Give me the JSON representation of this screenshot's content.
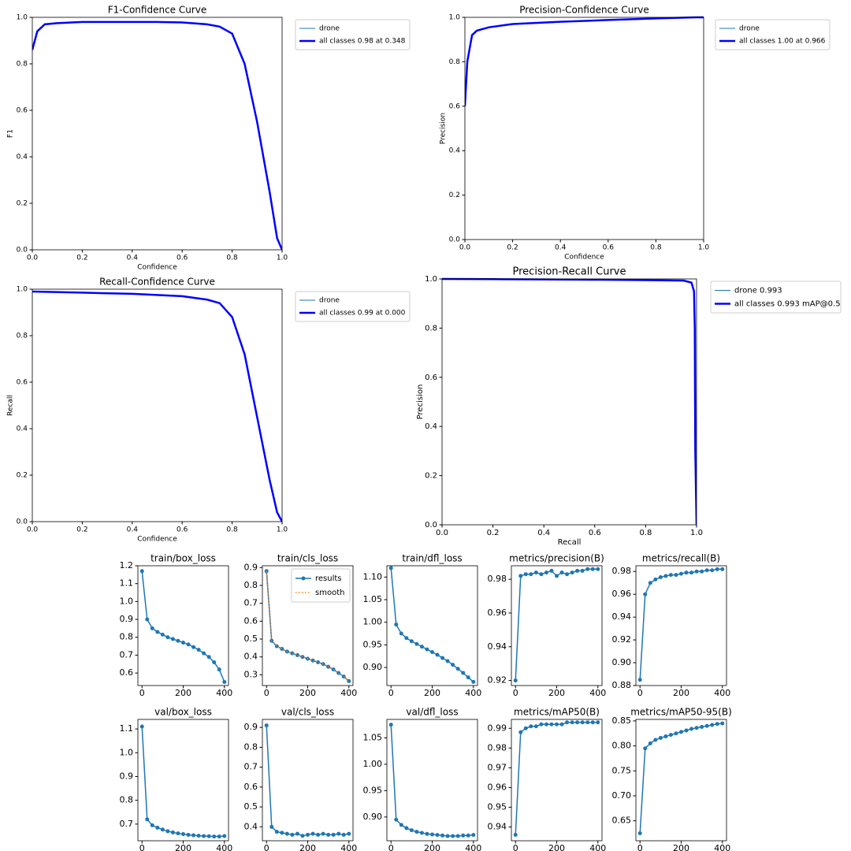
{
  "chart_data": [
    {
      "type": "line",
      "title": "F1-Confidence Curve",
      "xlabel": "Confidence",
      "ylabel": "F1",
      "legend": "outside right",
      "x": [
        0,
        0.02,
        0.05,
        0.1,
        0.2,
        0.348,
        0.5,
        0.6,
        0.7,
        0.75,
        0.8,
        0.85,
        0.9,
        0.95,
        0.98,
        1.0
      ],
      "series": [
        {
          "name": "drone",
          "color": "#1f77b4",
          "values": [
            0.86,
            0.94,
            0.97,
            0.975,
            0.98,
            0.98,
            0.98,
            0.978,
            0.97,
            0.96,
            0.93,
            0.8,
            0.55,
            0.25,
            0.05,
            0.0
          ]
        },
        {
          "name": "all classes 0.98 at 0.348",
          "color": "#0000ff",
          "values": [
            0.86,
            0.94,
            0.97,
            0.975,
            0.98,
            0.98,
            0.98,
            0.978,
            0.97,
            0.96,
            0.93,
            0.8,
            0.55,
            0.25,
            0.05,
            0.0
          ]
        }
      ],
      "xlim": [
        0,
        1
      ],
      "ylim": [
        0,
        1
      ],
      "xticks": [
        {
          "value": 0,
          "label": "0.0"
        },
        0.2,
        0.4,
        0.6,
        0.8,
        {
          "value": 1,
          "label": "1.0"
        }
      ],
      "yticks": [
        {
          "value": 0,
          "label": "0.0"
        },
        0.2,
        0.4,
        0.6,
        0.8,
        {
          "value": 1,
          "label": "1.0"
        }
      ]
    },
    {
      "type": "line",
      "title": "Precision-Confidence Curve",
      "xlabel": "Confidence",
      "ylabel": "Precision",
      "legend": "outside right",
      "x": [
        0,
        0.01,
        0.03,
        0.05,
        0.1,
        0.2,
        0.4,
        0.6,
        0.8,
        0.966,
        1.0
      ],
      "series": [
        {
          "name": "drone",
          "color": "#1f77b4",
          "values": [
            0.6,
            0.8,
            0.92,
            0.94,
            0.955,
            0.97,
            0.98,
            0.988,
            0.995,
            1.0,
            1.0
          ]
        },
        {
          "name": "all classes 1.00 at 0.966",
          "color": "#0000ff",
          "values": [
            0.6,
            0.8,
            0.92,
            0.94,
            0.955,
            0.97,
            0.98,
            0.988,
            0.995,
            1.0,
            1.0
          ]
        }
      ],
      "xlim": [
        0,
        1
      ],
      "ylim": [
        0,
        1
      ],
      "xticks": [
        {
          "value": 0,
          "label": "0.0"
        },
        0.2,
        0.4,
        0.6,
        0.8,
        {
          "value": 1,
          "label": "1.0"
        }
      ],
      "yticks": [
        {
          "value": 0,
          "label": "0.0"
        },
        0.2,
        0.4,
        0.6,
        0.8,
        {
          "value": 1,
          "label": "1.0"
        }
      ]
    },
    {
      "type": "line",
      "title": "Recall-Confidence Curve",
      "xlabel": "Confidence",
      "ylabel": "Recall",
      "legend": "outside right",
      "x": [
        0,
        0.2,
        0.4,
        0.6,
        0.7,
        0.75,
        0.8,
        0.85,
        0.9,
        0.95,
        0.98,
        1.0
      ],
      "series": [
        {
          "name": "drone",
          "color": "#1f77b4",
          "values": [
            0.99,
            0.985,
            0.98,
            0.97,
            0.955,
            0.94,
            0.88,
            0.72,
            0.45,
            0.18,
            0.04,
            0.0
          ]
        },
        {
          "name": "all classes 0.99 at 0.000",
          "color": "#0000ff",
          "values": [
            0.99,
            0.985,
            0.98,
            0.97,
            0.955,
            0.94,
            0.88,
            0.72,
            0.45,
            0.18,
            0.04,
            0.0
          ]
        }
      ],
      "xlim": [
        0,
        1
      ],
      "ylim": [
        0,
        1
      ],
      "xticks": [
        {
          "value": 0,
          "label": "0.0"
        },
        0.2,
        0.4,
        0.6,
        0.8,
        {
          "value": 1,
          "label": "1.0"
        }
      ],
      "yticks": [
        {
          "value": 0,
          "label": "0.0"
        },
        0.2,
        0.4,
        0.6,
        0.8,
        {
          "value": 1,
          "label": "1.0"
        }
      ]
    },
    {
      "type": "line",
      "title": "Precision-Recall Curve",
      "xlabel": "Recall",
      "ylabel": "Precision",
      "legend": "outside right",
      "x": [
        0,
        0.2,
        0.4,
        0.6,
        0.8,
        0.95,
        0.98,
        0.99,
        0.993,
        0.995,
        1.0
      ],
      "series": [
        {
          "name": "drone 0.993",
          "color": "#1f77b4",
          "values": [
            1,
            0.999,
            0.998,
            0.997,
            0.995,
            0.993,
            0.985,
            0.95,
            0.8,
            0.3,
            0.0
          ]
        },
        {
          "name": "all classes 0.993 mAP@0.5",
          "color": "#0000ff",
          "values": [
            1,
            0.999,
            0.998,
            0.997,
            0.995,
            0.993,
            0.985,
            0.95,
            0.8,
            0.3,
            0.0
          ]
        }
      ],
      "xlim": [
        0,
        1
      ],
      "ylim": [
        0,
        1
      ],
      "xticks": [
        {
          "value": 0,
          "label": "0.0"
        },
        0.2,
        0.4,
        0.6,
        0.8,
        {
          "value": 1,
          "label": "1.0"
        }
      ],
      "yticks": [
        {
          "value": 0,
          "label": "0.0"
        },
        0.2,
        0.4,
        0.6,
        0.8,
        {
          "value": 1,
          "label": "1.0"
        }
      ]
    },
    {
      "type": "line",
      "title": "train/box_loss",
      "x": [
        0,
        25,
        50,
        75,
        100,
        125,
        150,
        175,
        200,
        225,
        250,
        275,
        300,
        325,
        350,
        375,
        400
      ],
      "series": [
        {
          "color": "#1f77b4",
          "marker": true,
          "values": [
            1.17,
            0.9,
            0.85,
            0.83,
            0.815,
            0.8,
            0.79,
            0.78,
            0.77,
            0.76,
            0.745,
            0.73,
            0.71,
            0.69,
            0.66,
            0.62,
            0.55
          ]
        }
      ],
      "xlim": [
        -20,
        420
      ],
      "ylim": [
        0.53,
        1.2
      ],
      "xticks": [
        0,
        200,
        400
      ],
      "yticks": [
        0.6,
        0.7,
        0.8,
        0.9,
        {
          "value": 1,
          "label": "1.0"
        },
        1.1,
        1.2
      ]
    },
    {
      "type": "line",
      "title": "train/cls_loss",
      "legend": "upper right",
      "x": [
        0,
        25,
        50,
        75,
        100,
        125,
        150,
        175,
        200,
        225,
        250,
        275,
        300,
        325,
        350,
        375,
        400
      ],
      "series": [
        {
          "name": "results",
          "color": "#1f77b4",
          "marker": true,
          "values": [
            0.88,
            0.49,
            0.46,
            0.445,
            0.43,
            0.42,
            0.41,
            0.4,
            0.39,
            0.38,
            0.37,
            0.36,
            0.345,
            0.33,
            0.31,
            0.29,
            0.265
          ]
        },
        {
          "name": "smooth",
          "color": "#ff7f0e",
          "linestyle": "dotted",
          "values": [
            0.88,
            0.49,
            0.46,
            0.445,
            0.43,
            0.42,
            0.41,
            0.4,
            0.39,
            0.38,
            0.37,
            0.36,
            0.345,
            0.33,
            0.31,
            0.29,
            0.265
          ]
        }
      ],
      "xlim": [
        -20,
        420
      ],
      "ylim": [
        0.24,
        0.91
      ],
      "xticks": [
        0,
        200,
        400
      ],
      "yticks": [
        0.3,
        0.4,
        0.5,
        0.6,
        0.7,
        0.8,
        0.9
      ]
    },
    {
      "type": "line",
      "title": "train/dfl_loss",
      "x": [
        0,
        25,
        50,
        75,
        100,
        125,
        150,
        175,
        200,
        225,
        250,
        275,
        300,
        325,
        350,
        375,
        400
      ],
      "series": [
        {
          "color": "#1f77b4",
          "marker": true,
          "values": [
            1.12,
            0.995,
            0.975,
            0.965,
            0.958,
            0.952,
            0.946,
            0.94,
            0.934,
            0.928,
            0.921,
            0.914,
            0.906,
            0.897,
            0.888,
            0.878,
            0.868
          ]
        }
      ],
      "xlim": [
        -20,
        420
      ],
      "ylim": [
        0.86,
        1.125
      ],
      "xticks": [
        0,
        200,
        400
      ],
      "yticks": [
        {
          "value": 0.9,
          "label": "0.90"
        },
        0.95,
        {
          "value": 1,
          "label": "1.00"
        },
        1.05,
        {
          "value": 1.1,
          "label": "1.10"
        }
      ]
    },
    {
      "type": "line",
      "title": "metrics/precision(B)",
      "x": [
        0,
        25,
        50,
        75,
        100,
        125,
        150,
        175,
        200,
        225,
        250,
        275,
        300,
        325,
        350,
        375,
        400
      ],
      "series": [
        {
          "color": "#1f77b4",
          "marker": true,
          "values": [
            0.92,
            0.982,
            0.983,
            0.983,
            0.984,
            0.983,
            0.984,
            0.985,
            0.982,
            0.984,
            0.983,
            0.984,
            0.985,
            0.985,
            0.986,
            0.986,
            0.986
          ]
        }
      ],
      "xlim": [
        -20,
        420
      ],
      "ylim": [
        0.917,
        0.988
      ],
      "xticks": [
        0,
        200,
        400
      ],
      "yticks": [
        0.92,
        0.94,
        0.96,
        0.98
      ]
    },
    {
      "type": "line",
      "title": "metrics/recall(B)",
      "x": [
        0,
        25,
        50,
        75,
        100,
        125,
        150,
        175,
        200,
        225,
        250,
        275,
        300,
        325,
        350,
        375,
        400
      ],
      "series": [
        {
          "color": "#1f77b4",
          "marker": true,
          "values": [
            0.885,
            0.96,
            0.97,
            0.973,
            0.975,
            0.976,
            0.977,
            0.977,
            0.978,
            0.979,
            0.979,
            0.98,
            0.98,
            0.981,
            0.981,
            0.982,
            0.982
          ]
        }
      ],
      "xlim": [
        -20,
        420
      ],
      "ylim": [
        0.88,
        0.985
      ],
      "xticks": [
        0,
        200,
        400
      ],
      "yticks": [
        0.88,
        {
          "value": 0.9,
          "label": "0.90"
        },
        0.92,
        0.94,
        0.96,
        0.98
      ]
    },
    {
      "type": "line",
      "title": "val/box_loss",
      "x": [
        0,
        25,
        50,
        75,
        100,
        125,
        150,
        175,
        200,
        225,
        250,
        275,
        300,
        325,
        350,
        375,
        400
      ],
      "series": [
        {
          "color": "#1f77b4",
          "marker": true,
          "values": [
            1.11,
            0.72,
            0.695,
            0.685,
            0.677,
            0.67,
            0.665,
            0.661,
            0.658,
            0.655,
            0.653,
            0.651,
            0.65,
            0.649,
            0.648,
            0.648,
            0.65
          ]
        }
      ],
      "xlim": [
        -20,
        420
      ],
      "ylim": [
        0.63,
        1.14
      ],
      "xticks": [
        0,
        200,
        400
      ],
      "yticks": [
        0.7,
        0.8,
        0.9,
        {
          "value": 1,
          "label": "1.0"
        },
        1.1
      ]
    },
    {
      "type": "line",
      "title": "val/cls_loss",
      "x": [
        0,
        25,
        50,
        75,
        100,
        125,
        150,
        175,
        200,
        225,
        250,
        275,
        300,
        325,
        350,
        375,
        400
      ],
      "series": [
        {
          "color": "#1f77b4",
          "marker": true,
          "values": [
            0.91,
            0.4,
            0.375,
            0.37,
            0.365,
            0.36,
            0.365,
            0.355,
            0.36,
            0.365,
            0.36,
            0.365,
            0.36,
            0.36,
            0.365,
            0.36,
            0.365
          ]
        }
      ],
      "xlim": [
        -20,
        420
      ],
      "ylim": [
        0.33,
        0.94
      ],
      "xticks": [
        0,
        200,
        400
      ],
      "yticks": [
        0.4,
        0.5,
        0.6,
        0.7,
        0.8,
        0.9
      ]
    },
    {
      "type": "line",
      "title": "val/dfl_loss",
      "x": [
        0,
        25,
        50,
        75,
        100,
        125,
        150,
        175,
        200,
        225,
        250,
        275,
        300,
        325,
        350,
        375,
        400
      ],
      "series": [
        {
          "color": "#1f77b4",
          "marker": true,
          "values": [
            1.075,
            0.895,
            0.885,
            0.879,
            0.875,
            0.872,
            0.87,
            0.868,
            0.867,
            0.866,
            0.865,
            0.864,
            0.864,
            0.864,
            0.865,
            0.865,
            0.866
          ]
        }
      ],
      "xlim": [
        -20,
        420
      ],
      "ylim": [
        0.855,
        1.085
      ],
      "xticks": [
        0,
        200,
        400
      ],
      "yticks": [
        {
          "value": 0.9,
          "label": "0.90"
        },
        0.95,
        {
          "value": 1,
          "label": "1.00"
        },
        1.05
      ]
    },
    {
      "type": "line",
      "title": "metrics/mAP50(B)",
      "x": [
        0,
        25,
        50,
        75,
        100,
        125,
        150,
        175,
        200,
        225,
        250,
        275,
        300,
        325,
        350,
        375,
        400
      ],
      "series": [
        {
          "color": "#1f77b4",
          "marker": true,
          "values": [
            0.936,
            0.988,
            0.99,
            0.991,
            0.991,
            0.992,
            0.992,
            0.992,
            0.992,
            0.992,
            0.993,
            0.993,
            0.993,
            0.993,
            0.993,
            0.993,
            0.993
          ]
        }
      ],
      "xlim": [
        -20,
        420
      ],
      "ylim": [
        0.933,
        0.9945
      ],
      "xticks": [
        0,
        200,
        400
      ],
      "yticks": [
        0.94,
        0.95,
        0.96,
        0.97,
        0.98,
        0.99
      ]
    },
    {
      "type": "line",
      "title": "metrics/mAP50-95(B)",
      "x": [
        0,
        25,
        50,
        75,
        100,
        125,
        150,
        175,
        200,
        225,
        250,
        275,
        300,
        325,
        350,
        375,
        400
      ],
      "series": [
        {
          "color": "#1f77b4",
          "marker": true,
          "values": [
            0.625,
            0.795,
            0.805,
            0.812,
            0.816,
            0.819,
            0.822,
            0.825,
            0.828,
            0.831,
            0.834,
            0.836,
            0.838,
            0.84,
            0.842,
            0.844,
            0.845
          ]
        }
      ],
      "xlim": [
        -20,
        420
      ],
      "ylim": [
        0.61,
        0.853
      ],
      "xticks": [
        0,
        200,
        400
      ],
      "yticks": [
        0.65,
        {
          "value": 0.7,
          "label": "0.70"
        },
        0.75,
        {
          "value": 0.8,
          "label": "0.80"
        },
        0.85
      ]
    }
  ]
}
